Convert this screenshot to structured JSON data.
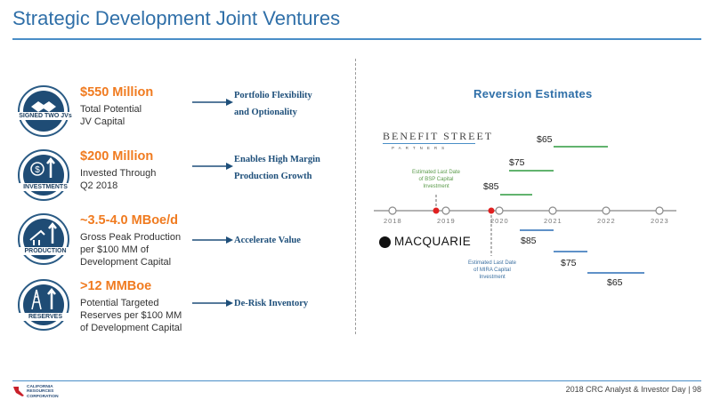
{
  "title": "Strategic Development Joint Ventures",
  "rows": [
    {
      "badge": "SIGNED TWO JVs",
      "metric": "$550 Million",
      "desc_lines": [
        "Total Potential",
        "JV Capital"
      ],
      "benefit_lines": [
        "Portfolio Flexibility",
        "and Optionality"
      ]
    },
    {
      "badge": "INVESTMENTS",
      "metric": "$200 Million",
      "desc_lines": [
        "Invested Through",
        "Q2 2018"
      ],
      "benefit_lines": [
        "Enables High Margin",
        "Production Growth"
      ]
    },
    {
      "badge": "PRODUCTION",
      "metric": "~3.5-4.0 MBoe/d",
      "desc_lines": [
        "Gross Peak Production",
        "per $100 MM of",
        "Development Capital"
      ],
      "benefit_lines": [
        "Accelerate Value"
      ]
    },
    {
      "badge": "RESERVES",
      "metric": ">12 MMBoe",
      "desc_lines": [
        "Potential Targeted",
        "Reserves per $100 MM",
        "of Development Capital"
      ],
      "benefit_lines": [
        "De-Risk Inventory"
      ]
    }
  ],
  "chart": {
    "title": "Reversion Estimates",
    "partners": {
      "bsp": {
        "name": "BENEFIT STREET",
        "sub": "PARTNERS"
      },
      "mira": {
        "name": "MACQUARIE"
      }
    },
    "timeline": [
      "2018",
      "2019",
      "2020",
      "2021",
      "2022",
      "2023"
    ],
    "bsp_prices": [
      "$65",
      "$75",
      "$85"
    ],
    "mira_prices": [
      "$85",
      "$75",
      "$65"
    ],
    "bsp_note": [
      "Estimated Last Date",
      "of BSP Capital",
      "Investment"
    ],
    "mira_note": [
      "Estimated Last Date",
      "of MIRA Capital",
      "Investment"
    ],
    "colors": {
      "bsp": "#2e9a3e",
      "mira": "#2a6db5",
      "marker": "#e02020"
    }
  },
  "footer": {
    "company_lines": [
      "CALIFORNIA",
      "RESOURCES",
      "CORPORATION"
    ],
    "text": "2018 CRC Analyst & Investor Day  |  98"
  }
}
